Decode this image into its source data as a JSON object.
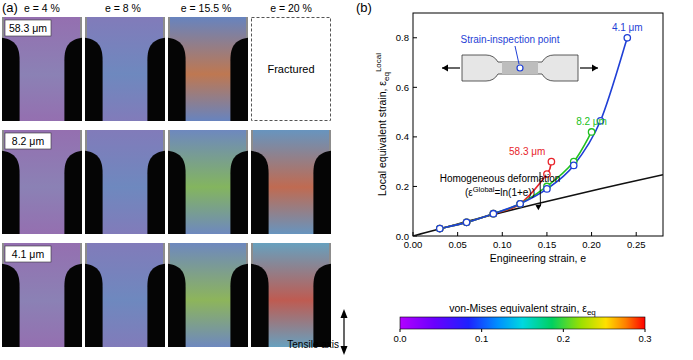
{
  "panel_a": {
    "panel_label": "(a)",
    "columns": [
      "e = 4 %",
      "e = 8 %",
      "e = 15.5 %",
      "e = 20 %"
    ],
    "rows": [
      "58.3 μm",
      "8.2 μm",
      "4.1 μm"
    ],
    "fractured_label": "Fractured",
    "tensile_axis_label": "Tensile axis"
  },
  "colorbar": {
    "label": "von-Mises equivalent strain, ε",
    "label_sub": "eq",
    "range": [
      0,
      0.3
    ],
    "ticks": [
      {
        "value": 0,
        "label": "0.0"
      },
      {
        "value": 0.1,
        "label": "0.1"
      },
      {
        "value": 0.2,
        "label": "0.2"
      },
      {
        "value": 0.3,
        "label": "0.3"
      }
    ]
  },
  "chart_data": {
    "type": "line",
    "panel_label": "(b)",
    "x_label": "Engineering strain, e",
    "y_label": "Local equivalent strain, ε",
    "y_label_sub": "eq",
    "y_label_sup": "Local",
    "inset_label": "Strain-inspection point",
    "annotation": {
      "line2_a": "(ε",
      "line2_sup": "Global",
      "line2_b": "=ln(1+e))"
    },
    "xlim": [
      0,
      0.28
    ],
    "ylim": [
      0,
      0.9
    ],
    "xticks": [
      {
        "value": 0,
        "label": "0.00"
      },
      {
        "value": 0.05,
        "label": "0.05"
      },
      {
        "value": 0.1,
        "label": "0.10"
      },
      {
        "value": 0.15,
        "label": "0.15"
      },
      {
        "value": 0.2,
        "label": "0.20"
      },
      {
        "value": 0.25,
        "label": "0.25"
      }
    ],
    "yticks": [
      {
        "value": 0,
        "label": "0.0"
      },
      {
        "value": 0.2,
        "label": "0.2"
      },
      {
        "value": 0.4,
        "label": "0.4"
      },
      {
        "value": 0.6,
        "label": "0.6"
      },
      {
        "value": 0.8,
        "label": "0.8"
      }
    ],
    "series": [
      {
        "name": "4.1 μm",
        "color": "#1f3fd6",
        "marker": "circle",
        "line_style": "solid",
        "x": [
          0.03,
          0.06,
          0.09,
          0.12,
          0.15,
          0.18,
          0.21,
          0.24
        ],
        "values": [
          0.03,
          0.055,
          0.09,
          0.13,
          0.19,
          0.285,
          0.465,
          0.8
        ]
      },
      {
        "name": "8.2 μm",
        "color": "#21c021",
        "marker": "circle",
        "line_style": "solid",
        "x": [
          0.03,
          0.06,
          0.09,
          0.12,
          0.15,
          0.18,
          0.2
        ],
        "values": [
          0.03,
          0.055,
          0.09,
          0.13,
          0.2,
          0.3,
          0.42
        ]
      },
      {
        "name": "58.3 μm",
        "color": "#e8232a",
        "marker": "circle",
        "line_style": "solid",
        "x": [
          0.03,
          0.06,
          0.09,
          0.12,
          0.15,
          0.155
        ],
        "values": [
          0.03,
          0.055,
          0.09,
          0.13,
          0.25,
          0.3
        ]
      },
      {
        "name": "Homogeneous deformation",
        "color": "#111111",
        "marker": "none",
        "line_style": "solid",
        "x": [
          0,
          0.07,
          0.14,
          0.21,
          0.28
        ],
        "values": [
          0,
          0.068,
          0.131,
          0.191,
          0.247
        ]
      }
    ]
  }
}
